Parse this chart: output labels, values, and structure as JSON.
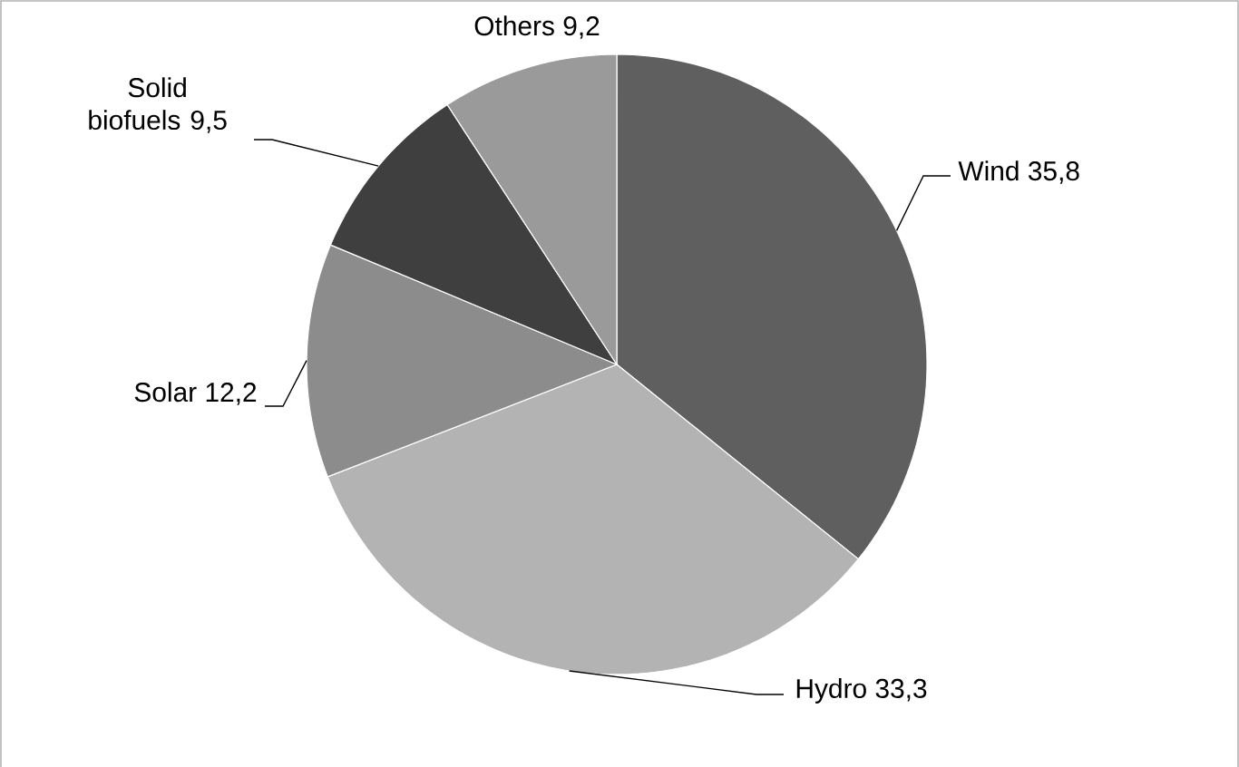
{
  "chart_data": {
    "type": "pie",
    "categories": [
      "Wind",
      "Hydro",
      "Solar",
      "Solid biofuels",
      "Others"
    ],
    "values": [
      35.8,
      33.3,
      12.2,
      9.5,
      9.2
    ],
    "value_labels": [
      "35,8",
      "33,3",
      "12,2",
      "9,5",
      "9,2"
    ],
    "colors": [
      "#5f5f5f",
      "#b3b3b3",
      "#8c8c8c",
      "#3f3f3f",
      "#9a9a9a"
    ]
  }
}
